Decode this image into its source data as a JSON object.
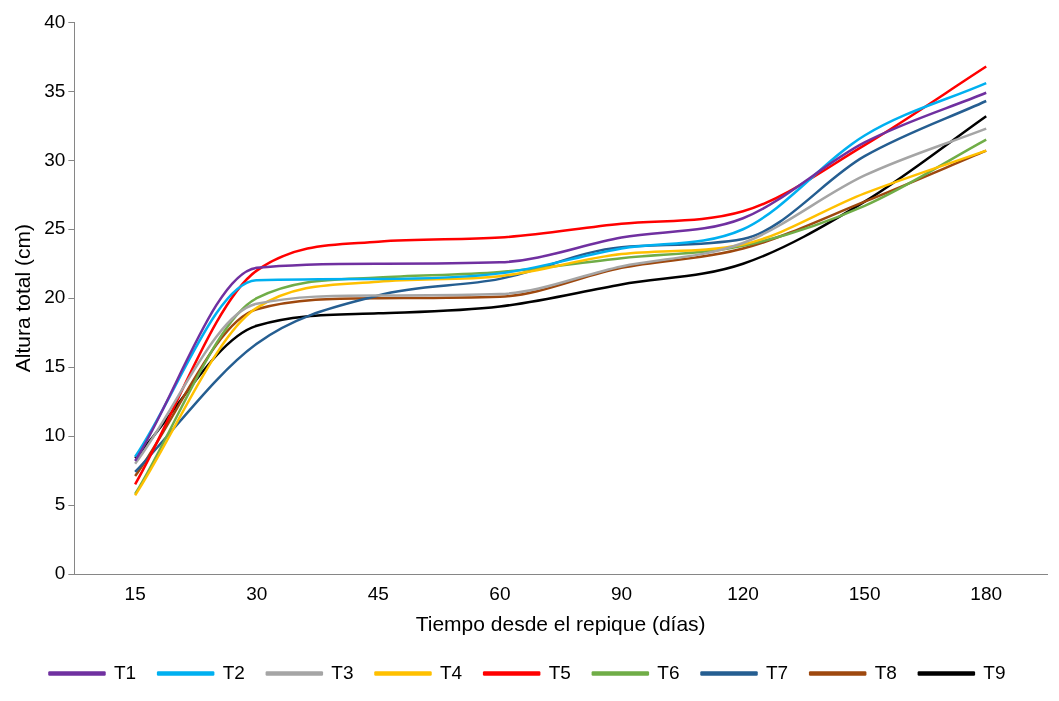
{
  "chart_data": {
    "type": "line",
    "xlabel": "Tiempo desde el repique (días)",
    "ylabel": "Altura total (cm)",
    "categories": [
      "15",
      "30",
      "45",
      "60",
      "90",
      "120",
      "150",
      "180"
    ],
    "ylim": [
      0,
      40
    ],
    "yticks": [
      0,
      5,
      10,
      15,
      20,
      25,
      30,
      35,
      40
    ],
    "grid": false,
    "legend": "bottom",
    "marker": "none",
    "line_style": "solid",
    "series": [
      {
        "name": "T1",
        "color": "#7030a0",
        "values": [
          8.2,
          22.2,
          22.5,
          22.6,
          24.4,
          25.8,
          31.3,
          34.9
        ]
      },
      {
        "name": "T2",
        "color": "#00b0f0",
        "values": [
          8.5,
          21.3,
          21.4,
          21.8,
          23.6,
          25.0,
          31.8,
          35.6
        ]
      },
      {
        "name": "T3",
        "color": "#a5a5a5",
        "values": [
          8.0,
          19.6,
          20.2,
          20.3,
          22.3,
          24.0,
          28.9,
          32.3
        ]
      },
      {
        "name": "T4",
        "color": "#ffc000",
        "values": [
          5.7,
          19.3,
          21.2,
          21.6,
          23.2,
          23.9,
          27.6,
          30.7
        ]
      },
      {
        "name": "T5",
        "color": "#ff0000",
        "values": [
          6.5,
          22.0,
          24.1,
          24.4,
          25.4,
          26.3,
          31.1,
          36.8
        ]
      },
      {
        "name": "T6",
        "color": "#70ad47",
        "values": [
          5.8,
          20.0,
          21.5,
          21.9,
          22.9,
          23.8,
          26.7,
          31.5
        ]
      },
      {
        "name": "T7",
        "color": "#255e91",
        "values": [
          7.4,
          16.7,
          20.2,
          21.4,
          23.7,
          24.3,
          30.3,
          34.3
        ]
      },
      {
        "name": "T8",
        "color": "#9e480e",
        "values": [
          7.1,
          19.2,
          20.0,
          20.1,
          22.2,
          23.6,
          27.0,
          30.7
        ]
      },
      {
        "name": "T9",
        "color": "#000000",
        "values": [
          8.4,
          18.0,
          18.9,
          19.4,
          21.0,
          22.5,
          27.0,
          33.2
        ]
      }
    ]
  }
}
